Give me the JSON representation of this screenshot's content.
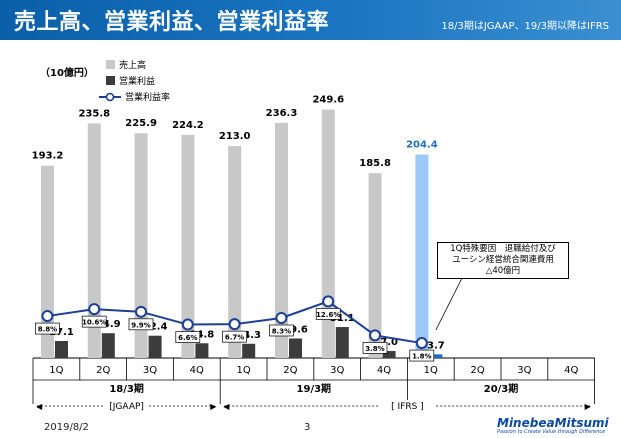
{
  "header": {
    "title": "売上高、営業利益、営業利益率",
    "note": "18/3期はJGAAP、19/3期以降はIFRS"
  },
  "unit_label": "（10億円）",
  "legend": {
    "sales": "売上高",
    "op_income": "営業利益",
    "op_margin": "営業利益率"
  },
  "callout": {
    "line1": "1Q特殊要因　退職給付及び",
    "line2": "ユーシン経営統合関連費用",
    "line3": "△40億円"
  },
  "fiscal_years": [
    {
      "label": "18/3期",
      "standard": "[JGAAP]"
    },
    {
      "label": "19/3期",
      "standard": ""
    },
    {
      "label": "20/3期",
      "standard": ""
    }
  ],
  "standard_ifrs": "[ IFRS ]",
  "footer": {
    "date": "2019/8/2",
    "page": "3",
    "logo": "MinebeaMitsumi",
    "tagline": "Passion to Create Value through Difference"
  },
  "colors": {
    "header": "#1566b0",
    "sales": "#c8c8c8",
    "op_income": "#3c3c3c",
    "sales_highlight": "#9cc9f5",
    "op_income_highlight": "#1f6fbf",
    "margin_line": "#1c3f94"
  },
  "chart_data": {
    "type": "bar",
    "categories": [
      "1Q",
      "2Q",
      "3Q",
      "4Q",
      "1Q",
      "2Q",
      "3Q",
      "4Q",
      "1Q",
      "2Q",
      "3Q",
      "4Q"
    ],
    "series": [
      {
        "name": "売上高",
        "values": [
          193.2,
          235.8,
          225.9,
          224.2,
          213.0,
          236.3,
          249.6,
          185.8,
          204.4,
          null,
          null,
          null
        ],
        "labels": [
          "193.2",
          "235.8",
          "225.9",
          "224.2",
          "213.0",
          "236.3",
          "249.6",
          "185.8",
          "204.4",
          "",
          "",
          ""
        ]
      },
      {
        "name": "営業利益",
        "values": [
          17.1,
          24.9,
          22.4,
          14.8,
          14.3,
          19.6,
          31.1,
          7.0,
          3.7,
          null,
          null,
          null
        ],
        "labels": [
          "17.1",
          "24.9",
          "22.4",
          "14.8",
          "14.3",
          "19.6",
          "31.1",
          "7.0",
          "3.7",
          "",
          "",
          ""
        ]
      },
      {
        "name": "営業利益率",
        "type": "line",
        "unit": "%",
        "values": [
          8.8,
          10.6,
          9.9,
          6.6,
          6.7,
          8.3,
          12.6,
          3.8,
          1.8,
          null,
          null,
          null
        ],
        "labels": [
          "8.8%",
          "10.6%",
          "9.9%",
          "6.6%",
          "6.7%",
          "8.3%",
          "12.6%",
          "3.8%",
          "1.8%",
          "",
          "",
          ""
        ]
      }
    ],
    "highlight_index": 8,
    "ylim": [
      0,
      280
    ],
    "grid": false,
    "legend_position": "top-left"
  }
}
